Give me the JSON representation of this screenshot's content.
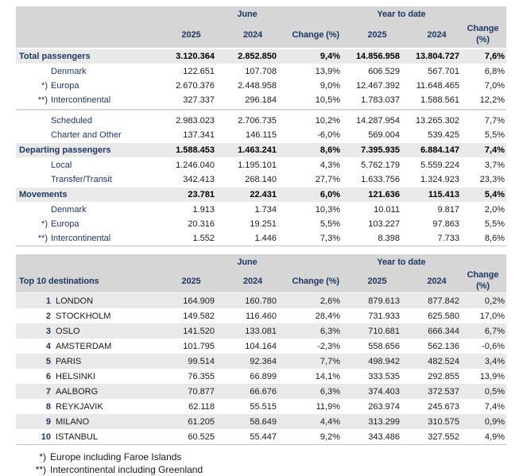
{
  "colors": {
    "accent_navy": "#1f3864",
    "header_bg": "#d6d6d6",
    "row_alt_bg": "#e9e9e9",
    "divider": "#d9d9d9",
    "body_text": "#1a1a1a"
  },
  "headers": {
    "period_june": "June",
    "period_ytd": "Year to date",
    "year_current": "2025",
    "year_prior": "2024",
    "change_label": "Change (%)"
  },
  "table1": {
    "rows": [
      {
        "style": "section",
        "marker": "",
        "label": "Total passengers",
        "values": [
          "3.120.364",
          "2.852.850",
          "9,4%",
          "14.856.958",
          "13.804.727",
          "7,6%"
        ]
      },
      {
        "style": "sub",
        "marker": "",
        "label": "Denmark",
        "values": [
          "122.651",
          "107.708",
          "13,9%",
          "606.529",
          "567.701",
          "6,8%"
        ]
      },
      {
        "style": "sub",
        "marker": "*)",
        "label": "Europa",
        "values": [
          "2.670.376",
          "2.448.958",
          "9,0%",
          "12.467.392",
          "11.648.465",
          "7,0%"
        ]
      },
      {
        "style": "sub",
        "marker": "**)",
        "label": "Intercontinental",
        "values": [
          "327.337",
          "296.184",
          "10,5%",
          "1.783.037",
          "1.588.561",
          "12,2%"
        ]
      },
      {
        "style": "divider"
      },
      {
        "style": "sub",
        "marker": "",
        "label": "Scheduled",
        "values": [
          "2.983.023",
          "2.706.735",
          "10,2%",
          "14.287.954",
          "13.265.302",
          "7,7%"
        ]
      },
      {
        "style": "sub",
        "marker": "",
        "label": "Charter and Other",
        "values": [
          "137.341",
          "146.115",
          "-6,0%",
          "569.004",
          "539.425",
          "5,5%"
        ]
      },
      {
        "style": "section",
        "marker": "",
        "label": "Departing passengers",
        "values": [
          "1.588.453",
          "1.463.241",
          "8,6%",
          "7.395.935",
          "6.884.147",
          "7,4%"
        ]
      },
      {
        "style": "sub",
        "marker": "",
        "label": "Local",
        "values": [
          "1.246.040",
          "1.195.101",
          "4,3%",
          "5.762.179",
          "5.559.224",
          "3,7%"
        ]
      },
      {
        "style": "sub",
        "marker": "",
        "label": "Transfer/Transit",
        "values": [
          "342.413",
          "268.140",
          "27,7%",
          "1.633.756",
          "1.324.923",
          "23,3%"
        ]
      },
      {
        "style": "section",
        "marker": "",
        "label": "Movements",
        "values": [
          "23.781",
          "22.431",
          "6,0%",
          "121.636",
          "115.413",
          "5,4%"
        ]
      },
      {
        "style": "sub",
        "marker": "",
        "label": "Denmark",
        "values": [
          "1.913",
          "1.734",
          "10,3%",
          "10.011",
          "9.817",
          "2,0%"
        ]
      },
      {
        "style": "sub",
        "marker": "*)",
        "label": "Europa",
        "values": [
          "20.316",
          "19.251",
          "5,5%",
          "103.227",
          "97.863",
          "5,5%"
        ]
      },
      {
        "style": "sub",
        "marker": "**)",
        "label": "Intercontinental",
        "values": [
          "1.552",
          "1.446",
          "7,3%",
          "8.398",
          "7.733",
          "8,6%"
        ]
      }
    ]
  },
  "table2": {
    "title": "Top 10 destinations",
    "rows": [
      {
        "rank": "1",
        "city": "LONDON",
        "values": [
          "164.909",
          "160.780",
          "2,6%",
          "879.613",
          "877.842",
          "0,2%"
        ]
      },
      {
        "rank": "2",
        "city": "STOCKHOLM",
        "values": [
          "149.582",
          "116.460",
          "28,4%",
          "731.933",
          "625.580",
          "17,0%"
        ]
      },
      {
        "rank": "3",
        "city": "OSLO",
        "values": [
          "141.520",
          "133.081",
          "6,3%",
          "710.681",
          "666.344",
          "6,7%"
        ]
      },
      {
        "rank": "4",
        "city": "AMSTERDAM",
        "values": [
          "101.795",
          "104.164",
          "-2,3%",
          "558.656",
          "562.136",
          "-0,6%"
        ]
      },
      {
        "rank": "5",
        "city": "PARIS",
        "values": [
          "99.514",
          "92.364",
          "7,7%",
          "498.942",
          "482.524",
          "3,4%"
        ]
      },
      {
        "rank": "6",
        "city": "HELSINKI",
        "values": [
          "76.355",
          "66.899",
          "14,1%",
          "333.535",
          "292.855",
          "13,9%"
        ]
      },
      {
        "rank": "7",
        "city": "AALBORG",
        "values": [
          "70.877",
          "66.676",
          "6,3%",
          "374.403",
          "372.537",
          "0,5%"
        ]
      },
      {
        "rank": "8",
        "city": "REYKJAVIK",
        "values": [
          "62.118",
          "55.515",
          "11,9%",
          "263.974",
          "245.673",
          "7,4%"
        ]
      },
      {
        "rank": "9",
        "city": "MILANO",
        "values": [
          "61.205",
          "58.649",
          "4,4%",
          "313.299",
          "310.575",
          "0,9%"
        ]
      },
      {
        "rank": "10",
        "city": "ISTANBUL",
        "values": [
          "60.525",
          "55.447",
          "9,2%",
          "343.486",
          "327.552",
          "4,9%"
        ]
      }
    ]
  },
  "footnotes": [
    {
      "marker": "*)",
      "text": "Europe including Faroe Islands"
    },
    {
      "marker": "**)",
      "text": "Intercontinental including Greenland"
    }
  ]
}
